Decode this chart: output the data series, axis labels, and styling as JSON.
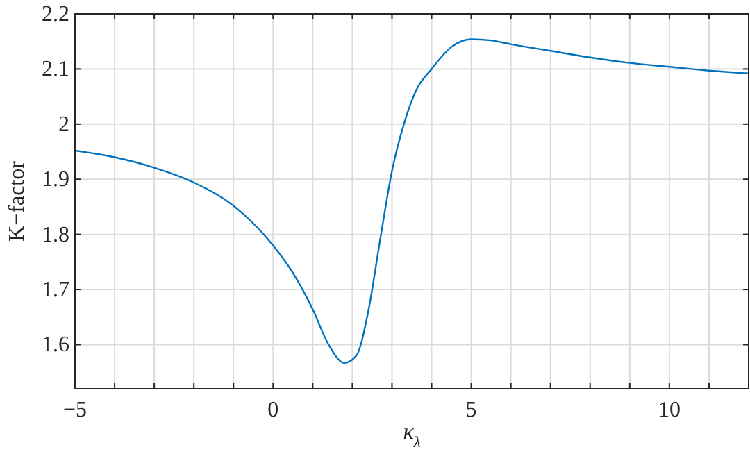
{
  "chart_data": {
    "type": "line",
    "xlabel": "κ$_{λ}$",
    "ylabel": "K−factor",
    "xlim": [
      -5,
      12
    ],
    "ylim": [
      1.52,
      2.2
    ],
    "xticks": [
      -5,
      {
        "value": -4,
        "label": null
      },
      {
        "value": -3,
        "label": null
      },
      {
        "value": -2,
        "label": null
      },
      {
        "value": -1,
        "label": null
      },
      0,
      {
        "value": 1,
        "label": null
      },
      {
        "value": 2,
        "label": null
      },
      {
        "value": 3,
        "label": null
      },
      {
        "value": 4,
        "label": null
      },
      5,
      {
        "value": 6,
        "label": null
      },
      {
        "value": 7,
        "label": null
      },
      {
        "value": 8,
        "label": null
      },
      {
        "value": 9,
        "label": null
      },
      10,
      {
        "value": 11,
        "label": null
      },
      {
        "value": 12,
        "label": null
      }
    ],
    "yticks": [
      1.6,
      1.7,
      1.8,
      1.9,
      2,
      2.1,
      2.2
    ],
    "grid": true,
    "marker": "none",
    "line_style": "solid",
    "x": [
      -5,
      -4,
      -3,
      -2,
      -1,
      -0.5,
      0,
      0.5,
      1,
      1.4,
      1.8,
      2.1,
      2.4,
      2.7,
      3,
      3.3,
      3.6,
      4,
      4.5,
      5,
      5.5,
      6,
      7,
      8,
      9,
      10,
      11,
      12
    ],
    "series": [
      {
        "color": "#0072bd",
        "values": [
          1.952,
          1.94,
          1.921,
          1.894,
          1.852,
          1.82,
          1.78,
          1.73,
          1.664,
          1.6,
          1.567,
          1.58,
          1.66,
          1.79,
          1.915,
          2.0,
          2.06,
          2.1,
          2.14,
          2.154,
          2.152,
          2.145,
          2.133,
          2.121,
          2.111,
          2.104,
          2.097,
          2.092
        ]
      }
    ]
  }
}
